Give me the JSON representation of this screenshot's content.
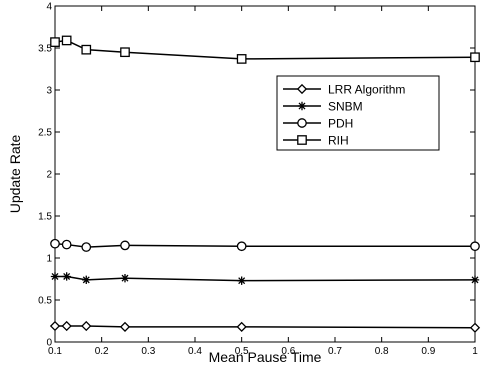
{
  "chart_data": {
    "type": "line",
    "xlabel": "Mean Pause Time",
    "ylabel": "Update Rate",
    "xlim": [
      0.1,
      1
    ],
    "ylim": [
      0,
      4
    ],
    "xticks": [
      "0.1",
      "0.2",
      "0.3",
      "0.4",
      "0.5",
      "0.6",
      "0.7",
      "0.8",
      "0.9",
      "1"
    ],
    "yticks": [
      "0",
      "0.5",
      "1",
      "1.5",
      "2",
      "2.5",
      "3",
      "3.5",
      "4"
    ],
    "grid": false,
    "legend_position": "center-right",
    "x": [
      0.1,
      0.125,
      0.167,
      0.25,
      0.5,
      1
    ],
    "series": [
      {
        "name": "LRR Algorithm",
        "marker": "diamond",
        "values": [
          0.19,
          0.19,
          0.19,
          0.18,
          0.18,
          0.17
        ]
      },
      {
        "name": "SNBM",
        "marker": "asterisk",
        "values": [
          0.78,
          0.78,
          0.74,
          0.76,
          0.73,
          0.74
        ]
      },
      {
        "name": "PDH",
        "marker": "circle",
        "values": [
          1.17,
          1.16,
          1.13,
          1.15,
          1.14,
          1.14
        ]
      },
      {
        "name": "RIH",
        "marker": "square",
        "values": [
          3.57,
          3.59,
          3.48,
          3.45,
          3.37,
          3.39
        ]
      }
    ],
    "colors": {
      "line": "#000000",
      "background": "#ffffff"
    }
  }
}
